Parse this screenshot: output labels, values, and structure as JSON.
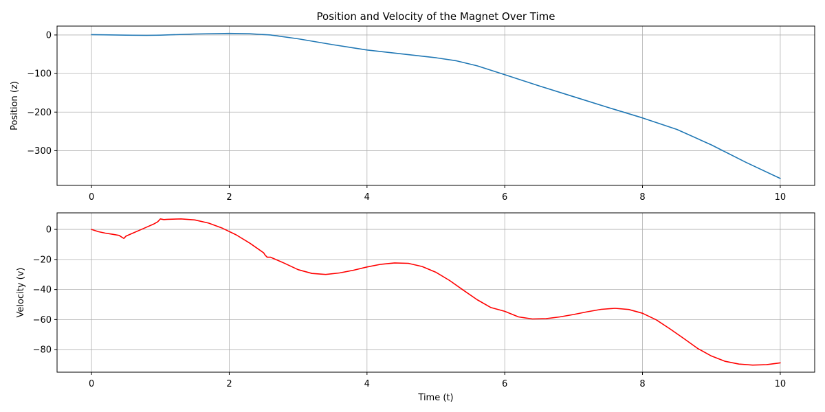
{
  "chart_data": [
    {
      "type": "line",
      "title": "Position and Velocity of the Magnet Over Time",
      "xlabel": "",
      "ylabel": "Position (z)",
      "xlim": [
        -0.5,
        10.5
      ],
      "ylim": [
        -390,
        23
      ],
      "xticks": [
        0,
        2,
        4,
        6,
        8,
        10
      ],
      "yticks": [
        0,
        -100,
        -200,
        -300
      ],
      "ytick_labels": [
        "0",
        "−100",
        "−200",
        "−300"
      ],
      "grid": true,
      "series": [
        {
          "color": "#1f77b4",
          "x": [
            0,
            0.5,
            0.8,
            1.0,
            1.5,
            2.0,
            2.3,
            2.6,
            3.0,
            3.5,
            4.0,
            4.5,
            5.0,
            5.3,
            5.6,
            6.0,
            6.5,
            7.0,
            7.5,
            8.0,
            8.5,
            9.0,
            9.5,
            10.0
          ],
          "y": [
            1,
            -0.5,
            -1,
            -0.5,
            2.5,
            4,
            3,
            0,
            -10,
            -25,
            -39,
            -49,
            -59,
            -67,
            -80,
            -103,
            -132,
            -160,
            -188,
            -215,
            -245,
            -285,
            -330,
            -372
          ]
        }
      ]
    },
    {
      "type": "line",
      "title": "",
      "xlabel": "Time (t)",
      "ylabel": "Velocity (v)",
      "xlim": [
        -0.5,
        10.5
      ],
      "ylim": [
        -95,
        11
      ],
      "xticks": [
        0,
        2,
        4,
        6,
        8,
        10
      ],
      "xtick_labels": [
        "0",
        "2",
        "4",
        "6",
        "8",
        "10"
      ],
      "yticks": [
        0,
        -20,
        -40,
        -60,
        -80
      ],
      "ytick_labels": [
        "0",
        "−20",
        "−40",
        "−60",
        "−80"
      ],
      "grid": true,
      "series": [
        {
          "color": "#ff0000",
          "x": [
            0,
            0.1,
            0.2,
            0.3,
            0.4,
            0.45,
            0.47,
            0.5,
            0.6,
            0.7,
            0.8,
            0.9,
            0.96,
            1.0,
            1.05,
            1.1,
            1.3,
            1.5,
            1.7,
            1.9,
            2.1,
            2.3,
            2.5,
            2.52,
            2.55,
            2.6,
            2.8,
            3.0,
            3.2,
            3.4,
            3.6,
            3.8,
            4.0,
            4.2,
            4.4,
            4.6,
            4.8,
            5.0,
            5.2,
            5.4,
            5.6,
            5.8,
            6.0,
            6.2,
            6.4,
            6.6,
            6.8,
            7.0,
            7.2,
            7.4,
            7.6,
            7.8,
            8.0,
            8.2,
            8.4,
            8.6,
            8.8,
            9.0,
            9.2,
            9.4,
            9.6,
            9.8,
            10.0
          ],
          "y": [
            0,
            -1.5,
            -2.5,
            -3.2,
            -4,
            -5.5,
            -6,
            -4.5,
            -2.5,
            -0.5,
            1.5,
            3.5,
            5,
            7,
            6.5,
            6.7,
            7,
            6.3,
            4.2,
            0.8,
            -3.6,
            -9.2,
            -15.6,
            -17,
            -18.5,
            -18.5,
            -22.5,
            -26.8,
            -29.3,
            -30,
            -29,
            -27.2,
            -25,
            -23.2,
            -22.3,
            -22.6,
            -24.7,
            -28.5,
            -34,
            -40.5,
            -46.8,
            -52,
            -54.5,
            -58.2,
            -59.6,
            -59.4,
            -58.2,
            -56.6,
            -54.8,
            -53.2,
            -52.5,
            -53.3,
            -55.8,
            -60.2,
            -66.2,
            -72.6,
            -79.2,
            -84.2,
            -87.8,
            -89.6,
            -90.3,
            -90,
            -88.8
          ]
        }
      ]
    }
  ]
}
